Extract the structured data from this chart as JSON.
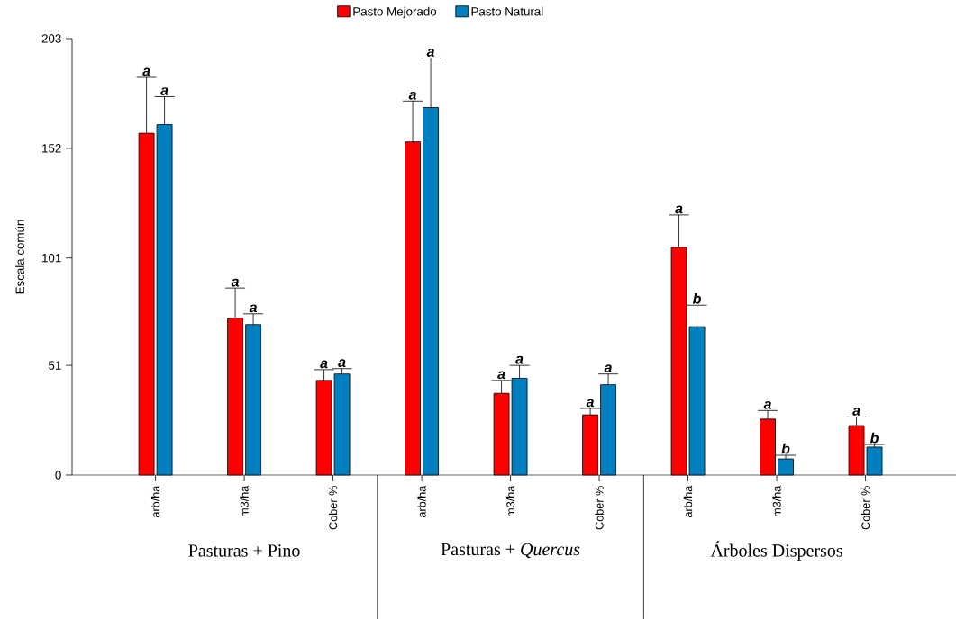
{
  "chart_data": {
    "type": "bar",
    "ylabel": "Escala común",
    "categories": [
      "arb/ha",
      "m3/ha",
      "Cober %",
      "arb/ha",
      "m3/ha",
      "Cober %",
      "arb/ha",
      "m3/ha",
      "Cober %"
    ],
    "series": [
      {
        "name": "Pasto Mejorado",
        "color": "#ff0000",
        "values": [
          159,
          73,
          44,
          155,
          38,
          28,
          106,
          26,
          23
        ],
        "errors": [
          26,
          14,
          5,
          19,
          6,
          3,
          15,
          4,
          4
        ]
      },
      {
        "name": "Pasto Natural",
        "color": "#0080c0",
        "values": [
          163,
          70,
          47,
          171,
          45,
          42,
          69,
          7.5,
          13
        ],
        "errors": [
          13,
          5,
          2.5,
          23,
          6,
          5,
          10,
          1.7,
          1.2
        ]
      }
    ],
    "annotations": [
      "a",
      "a",
      "a",
      "a",
      "a",
      "a",
      "a",
      "a",
      "a",
      "a",
      "a",
      "a",
      "a",
      "b",
      "a",
      "b",
      "a",
      "b",
      "Pasturas + Pino",
      "Pasturas + *Quercus*",
      "Árboles Dispersos"
    ],
    "ylim": [
      0,
      203
    ],
    "yticks": [
      0,
      51,
      101,
      152,
      203
    ],
    "legend": "top"
  }
}
